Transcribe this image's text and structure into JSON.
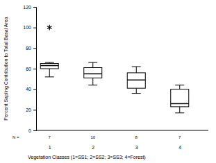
{
  "chart_data": {
    "type": "box",
    "x_label": "Vegetation Classes (1=SS1; 2=SS2; 3=SS3; 4=Forest)",
    "y_label": "Percent Sapling Contribution to Total Basal Area",
    "categories": [
      "1",
      "2",
      "3",
      "4"
    ],
    "boxes": {
      "whisker_low": [
        52,
        44,
        36,
        17
      ],
      "q1": [
        60,
        51,
        41,
        23
      ],
      "median": [
        63,
        55,
        49,
        26
      ],
      "q3": [
        65,
        61,
        56,
        40
      ],
      "whisker_high": [
        66,
        66,
        62,
        44
      ]
    },
    "outliers": [
      [
        100
      ],
      [],
      [],
      []
    ],
    "marker": "asterisk",
    "n_label": "N =",
    "n": [
      7,
      10,
      8,
      7
    ],
    "color": "#ffffff",
    "ylim": [
      0,
      120
    ],
    "yticks": [
      0,
      20,
      40,
      60,
      80,
      100,
      120
    ]
  }
}
